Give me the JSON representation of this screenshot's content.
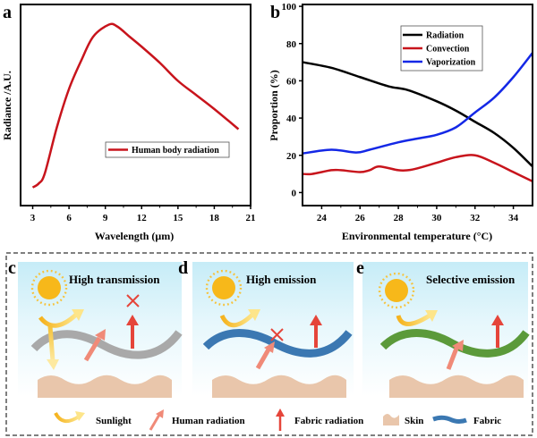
{
  "chart_data": [
    {
      "panel": "a",
      "type": "line",
      "title": "",
      "xlabel": "Wavelength (μm)",
      "ylabel": "Radiance /A.U.",
      "xlim": [
        2,
        21
      ],
      "ylim": [
        0,
        100
      ],
      "xticks": [
        3,
        6,
        9,
        12,
        15,
        18,
        21
      ],
      "legend_position": "center-right",
      "series": [
        {
          "name": "Human body radiation",
          "color": "#c8141c",
          "x": [
            3,
            3.5,
            4,
            5,
            6,
            7,
            8,
            9.3,
            10,
            11,
            12,
            13.5,
            15,
            16.5,
            18,
            20
          ],
          "y": [
            9,
            11,
            16,
            39,
            58,
            72,
            84,
            90,
            89,
            84,
            79,
            71,
            62,
            55,
            48,
            38
          ]
        }
      ]
    },
    {
      "panel": "b",
      "type": "line",
      "title": "",
      "xlabel": "Environmental temperature (°C)",
      "ylabel": "Proportion (%)",
      "xlim": [
        23,
        35
      ],
      "ylim": [
        -7,
        101
      ],
      "xticks": [
        24,
        26,
        28,
        30,
        32,
        34
      ],
      "yticks": [
        0,
        20,
        40,
        60,
        80,
        100
      ],
      "legend_position": "top-right",
      "series": [
        {
          "name": "Radiation",
          "color": "#000000",
          "x": [
            23,
            24.5,
            26,
            27.5,
            28.5,
            30,
            31,
            32,
            33,
            34,
            35
          ],
          "y": [
            70,
            67,
            62,
            57,
            55,
            49,
            44,
            38,
            32,
            24,
            14
          ]
        },
        {
          "name": "Convection",
          "color": "#c8141c",
          "x": [
            23,
            23.5,
            24.5,
            25,
            26,
            26.5,
            27,
            28,
            28.5,
            29,
            30,
            31,
            32,
            33,
            34,
            35
          ],
          "y": [
            10,
            10,
            12,
            12,
            11,
            12,
            14,
            12,
            12,
            13,
            16,
            19,
            20,
            16,
            11,
            6
          ]
        },
        {
          "name": "Vaporization",
          "color": "#1428e6",
          "x": [
            23,
            24.5,
            25.8,
            26.5,
            28,
            29,
            30,
            31,
            32,
            33,
            34,
            35
          ],
          "y": [
            21,
            23,
            21.5,
            23,
            27,
            29,
            31,
            35,
            43,
            51,
            62,
            75
          ]
        }
      ]
    }
  ],
  "panel_labels": {
    "a": "a",
    "b": "b",
    "c": "c",
    "d": "d",
    "e": "e"
  },
  "schematics": {
    "c": {
      "title": "High transmission"
    },
    "d": {
      "title": "High emission"
    },
    "e": {
      "title": "Selective emission"
    }
  },
  "legend": {
    "sunlight": "Sunlight",
    "human_radiation": "Human radiation",
    "fabric_radiation": "Fabric radiation",
    "skin": "Skin",
    "fabric": "Fabric"
  },
  "colors": {
    "sun": "#f7b81a",
    "skin": "#e9c6ab",
    "fabric_c": "#a9a9a9",
    "fabric_d": "#3b78b2",
    "fabric_e": "#5b9a3a",
    "human_arrow": "#f08a78",
    "fabric_arrow": "#e5453a"
  }
}
